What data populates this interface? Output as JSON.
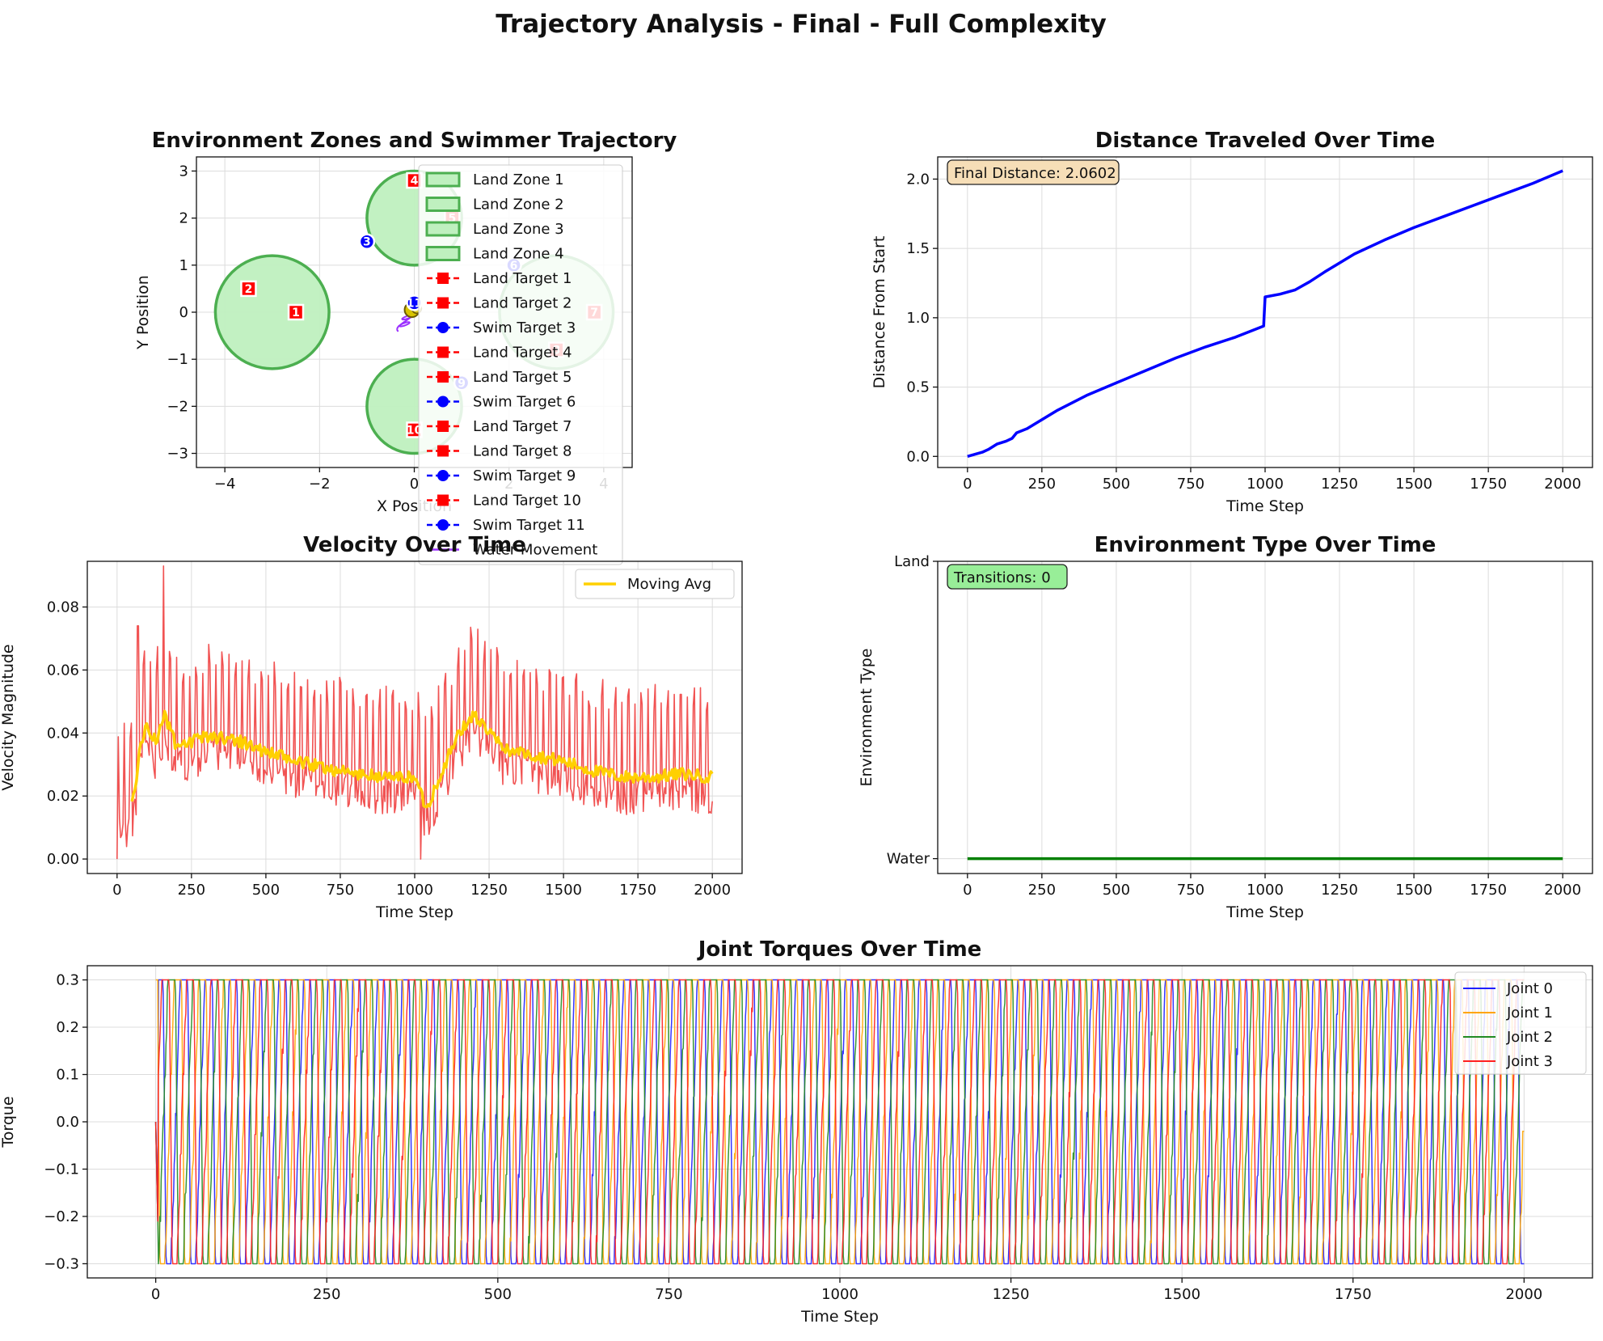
{
  "figure": {
    "suptitle": "Trajectory Analysis - Final - Full Complexity"
  },
  "chart_data": [
    {
      "id": "trajectory",
      "type": "scatter",
      "title": "Environment Zones and Swimmer Trajectory",
      "xlabel": "X Position",
      "ylabel": "Y Position",
      "xlim": [
        -4.6,
        4.6
      ],
      "ylim": [
        -3.3,
        3.3
      ],
      "xticks": [
        -4,
        -2,
        0,
        2,
        4
      ],
      "yticks": [
        -3,
        -2,
        -1,
        0,
        1,
        2,
        3
      ],
      "grid": true,
      "legend_position": "upper-right (overflowing)",
      "zones": [
        {
          "name": "Land Zone 1",
          "center": [
            0.0,
            2.0
          ],
          "radius": 1.0
        },
        {
          "name": "Land Zone 2",
          "center": [
            -3.0,
            0.0
          ],
          "radius": 1.2
        },
        {
          "name": "Land Zone 3",
          "center": [
            3.0,
            0.0
          ],
          "radius": 1.2
        },
        {
          "name": "Land Zone 4",
          "center": [
            0.0,
            -2.0
          ],
          "radius": 1.0
        }
      ],
      "targets": [
        {
          "label": "1",
          "kind": "land",
          "x": -2.5,
          "y": 0.0
        },
        {
          "label": "2",
          "kind": "land",
          "x": -3.5,
          "y": 0.5
        },
        {
          "label": "3",
          "kind": "swim",
          "x": -1.0,
          "y": 1.5
        },
        {
          "label": "4",
          "kind": "land",
          "x": 0.0,
          "y": 2.8
        },
        {
          "label": "5",
          "kind": "land",
          "x": 0.8,
          "y": 2.0
        },
        {
          "label": "6",
          "kind": "swim",
          "x": 2.1,
          "y": 1.0
        },
        {
          "label": "7",
          "kind": "land",
          "x": 3.8,
          "y": 0.0
        },
        {
          "label": "8",
          "kind": "land",
          "x": 3.0,
          "y": -0.8
        },
        {
          "label": "9",
          "kind": "swim",
          "x": 1.0,
          "y": -1.5
        },
        {
          "label": "10",
          "kind": "land",
          "x": 0.0,
          "y": -2.5
        },
        {
          "label": "11",
          "kind": "swim",
          "x": 0.0,
          "y": 0.2
        }
      ],
      "trajectory": {
        "name": "Water Movement",
        "start": [
          -0.1,
          0.0
        ],
        "end": [
          -0.25,
          -0.35
        ]
      },
      "legend": [
        "Land Zone 1",
        "Land Zone 2",
        "Land Zone 3",
        "Land Zone 4",
        "Land Target 1",
        "Land Target 2",
        "Swim Target 3",
        "Land Target 4",
        "Land Target 5",
        "Swim Target 6",
        "Land Target 7",
        "Land Target 8",
        "Swim Target 9",
        "Land Target 10",
        "Swim Target 11",
        "Water Movement"
      ],
      "colors": {
        "zone_fill": "#bff0bf",
        "zone_edge": "#4caf50",
        "land": "#ff0000",
        "swim": "#0000ff",
        "traj": "#9b30ff"
      }
    },
    {
      "id": "distance",
      "type": "line",
      "title": "Distance Traveled Over Time",
      "xlabel": "Time Step",
      "ylabel": "Distance From Start",
      "xlim": [
        -100,
        2100
      ],
      "ylim": [
        -0.08,
        2.16
      ],
      "xticks": [
        0,
        250,
        500,
        750,
        1000,
        1250,
        1500,
        1750,
        2000
      ],
      "yticks": [
        0.0,
        0.5,
        1.0,
        1.5,
        2.0
      ],
      "grid": true,
      "annotation": "Final Distance: 2.0602",
      "x": [
        0,
        50,
        70,
        100,
        130,
        150,
        165,
        200,
        300,
        400,
        500,
        600,
        700,
        800,
        900,
        995,
        1000,
        1050,
        1100,
        1150,
        1200,
        1300,
        1400,
        1500,
        1600,
        1700,
        1800,
        1900,
        2000
      ],
      "y": [
        0.0,
        0.03,
        0.05,
        0.09,
        0.11,
        0.13,
        0.17,
        0.2,
        0.33,
        0.44,
        0.53,
        0.62,
        0.71,
        0.79,
        0.86,
        0.94,
        1.15,
        1.17,
        1.2,
        1.26,
        1.33,
        1.46,
        1.56,
        1.65,
        1.73,
        1.81,
        1.89,
        1.97,
        2.06
      ],
      "colors": {
        "line": "#0000ff"
      }
    },
    {
      "id": "velocity",
      "type": "line",
      "title": "Velocity Over Time",
      "xlabel": "Time Step",
      "ylabel": "Velocity Magnitude",
      "xlim": [
        -100,
        2100
      ],
      "ylim": [
        -0.0046,
        0.0945
      ],
      "xticks": [
        0,
        250,
        500,
        750,
        1000,
        1250,
        1500,
        1750,
        2000
      ],
      "yticks": [
        0.0,
        0.02,
        0.04,
        0.06,
        0.08
      ],
      "grid": true,
      "legend": [
        "Moving Avg"
      ],
      "legend_position": "upper-right",
      "series": [
        {
          "id": "raw",
          "samples": 2000,
          "peaks": [
            [
              70,
              0.074
            ],
            [
              155,
              0.093
            ],
            [
              1020,
              0.0
            ]
          ]
        },
        {
          "name": "Moving Avg",
          "x": [
            50,
            80,
            100,
            130,
            160,
            200,
            300,
            400,
            500,
            600,
            700,
            800,
            900,
            1000,
            1040,
            1100,
            1150,
            1200,
            1250,
            1300,
            1400,
            1500,
            1600,
            1700,
            1800,
            1900,
            2000
          ],
          "values": [
            0.017,
            0.036,
            0.043,
            0.037,
            0.046,
            0.035,
            0.039,
            0.038,
            0.034,
            0.031,
            0.029,
            0.027,
            0.026,
            0.026,
            0.016,
            0.03,
            0.04,
            0.046,
            0.04,
            0.035,
            0.033,
            0.031,
            0.028,
            0.026,
            0.026,
            0.027,
            0.026
          ]
        }
      ],
      "colors": {
        "raw": "#f04040",
        "avg": "#ffd000"
      }
    },
    {
      "id": "environment",
      "type": "line",
      "title": "Environment Type Over Time",
      "xlabel": "Time Step",
      "ylabel": "Environment Type",
      "xlim": [
        -100,
        2100
      ],
      "ylim": [
        -0.05,
        1.0
      ],
      "xticks": [
        0,
        250,
        500,
        750,
        1000,
        1250,
        1500,
        1750,
        2000
      ],
      "ytick_labels": [
        "Water",
        "Land"
      ],
      "grid": true,
      "annotation": "Transitions: 0",
      "x": [
        0,
        2000
      ],
      "y": [
        0,
        0
      ],
      "colors": {
        "line": "#008000"
      }
    },
    {
      "id": "torques",
      "type": "line",
      "title": "Joint Torques Over Time",
      "xlabel": "Time Step",
      "ylabel": "Torque",
      "xlim": [
        -100,
        2100
      ],
      "ylim": [
        -0.33,
        0.33
      ],
      "xticks": [
        0,
        250,
        500,
        750,
        1000,
        1250,
        1500,
        1750,
        2000
      ],
      "yticks": [
        -0.3,
        -0.2,
        -0.1,
        0.0,
        0.1,
        0.2,
        0.3
      ],
      "grid": true,
      "legend": [
        "Joint 0",
        "Joint 1",
        "Joint 2",
        "Joint 3"
      ],
      "legend_position": "upper-right",
      "series": [
        {
          "name": "Joint 0",
          "range": [
            -0.3,
            0.3
          ],
          "period_steps": 36,
          "phase": 0.0,
          "end_value": -0.3
        },
        {
          "name": "Joint 1",
          "range": [
            -0.3,
            0.3
          ],
          "period_steps": 36,
          "phase": 0.25,
          "end_value": -0.02
        },
        {
          "name": "Joint 2",
          "range": [
            -0.3,
            0.3
          ],
          "period_steps": 36,
          "phase": 0.5,
          "end_value": 0.3
        },
        {
          "name": "Joint 3",
          "range": [
            -0.3,
            0.3
          ],
          "period_steps": 36,
          "phase": 0.75,
          "end_value": 0.3
        }
      ],
      "colors": {
        "Joint 0": "#2020ff",
        "Joint 1": "#ffa500",
        "Joint 2": "#228b22",
        "Joint 3": "#ff2020"
      }
    }
  ]
}
